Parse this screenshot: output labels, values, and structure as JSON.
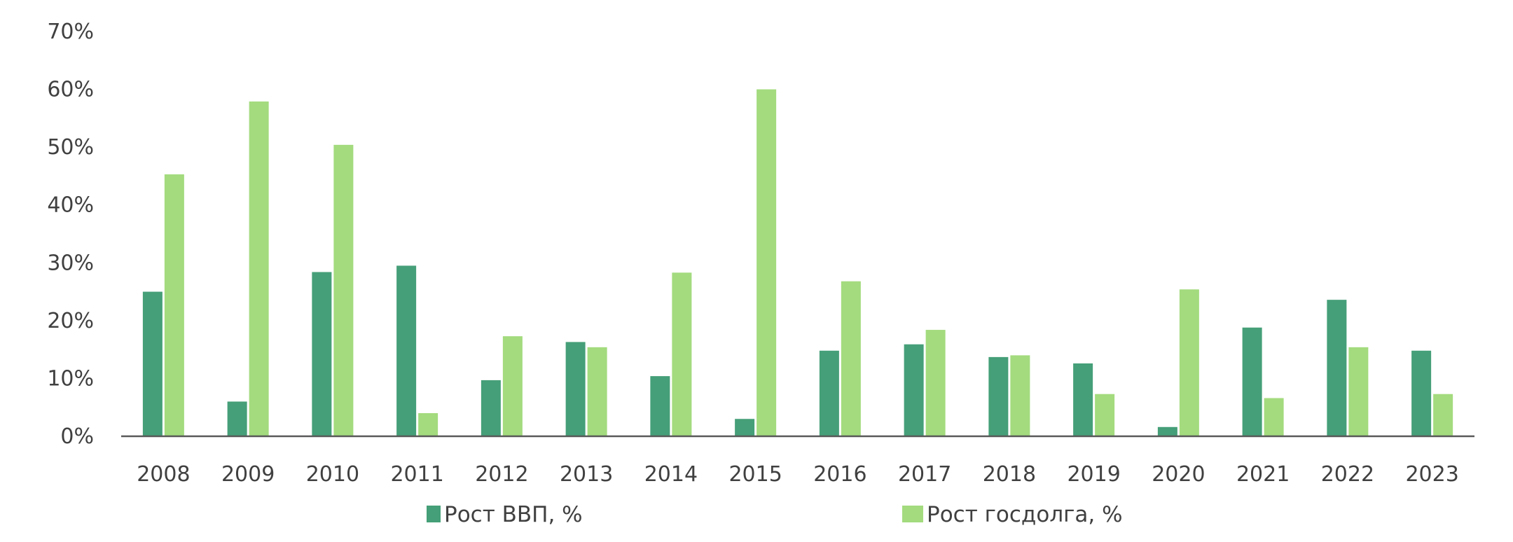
{
  "chart_data": {
    "type": "bar",
    "categories": [
      "2008",
      "2009",
      "2010",
      "2011",
      "2012",
      "2013",
      "2014",
      "2015",
      "2016",
      "2017",
      "2018",
      "2019",
      "2020",
      "2021",
      "2022",
      "2023"
    ],
    "series": [
      {
        "name": "Рост ВВП, %",
        "color": "#459F78",
        "values": [
          25.0,
          6.0,
          28.4,
          29.5,
          9.7,
          16.3,
          10.4,
          3.0,
          14.8,
          15.9,
          13.7,
          12.6,
          1.6,
          18.8,
          23.6,
          14.8
        ]
      },
      {
        "name": "Рост госдолга, %",
        "color": "#A3DB7E",
        "values": [
          45.3,
          57.9,
          50.4,
          4.0,
          17.3,
          15.4,
          28.3,
          60.0,
          26.8,
          18.4,
          14.0,
          7.3,
          25.4,
          6.6,
          15.4,
          7.3
        ]
      }
    ],
    "y_ticks": [
      "0%",
      "10%",
      "20%",
      "30%",
      "40%",
      "50%",
      "60%",
      "70%"
    ],
    "ylim": [
      0,
      70
    ],
    "grid": false,
    "legend_position": "bottom",
    "title": "",
    "xlabel": "",
    "ylabel": ""
  }
}
